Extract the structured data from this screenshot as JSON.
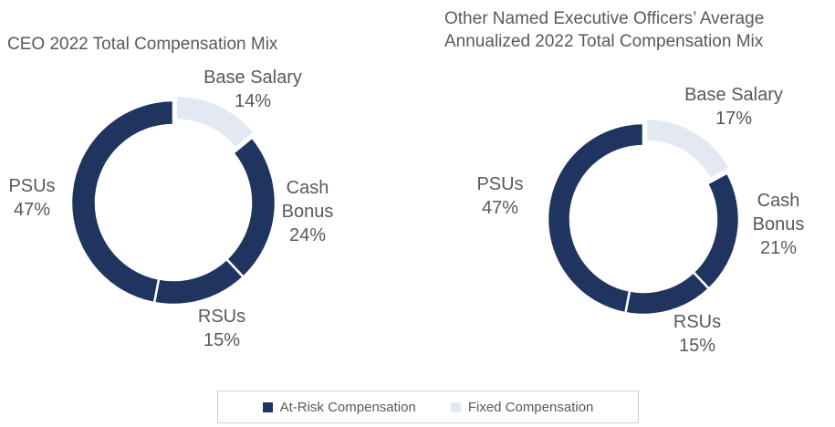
{
  "chart_data": [
    {
      "type": "pie",
      "title": "CEO 2022 Total Compensation Mix",
      "categories": [
        "Base Salary",
        "Cash Bonus",
        "RSUs",
        "PSUs"
      ],
      "values": [
        14,
        24,
        15,
        47
      ],
      "value_labels": [
        "14%",
        "24%",
        "15%",
        "47%"
      ],
      "colors": [
        "#e3e9f3",
        "#1f3560",
        "#1f3560",
        "#1f3560"
      ]
    },
    {
      "type": "pie",
      "title": "Other Named Executive Officers’ Average Annualized 2022 Total Compensation Mix",
      "categories": [
        "Base Salary",
        "Cash Bonus",
        "RSUs",
        "PSUs"
      ],
      "values": [
        17,
        21,
        15,
        47
      ],
      "value_labels": [
        "17%",
        "21%",
        "15%",
        "47%"
      ],
      "colors": [
        "#e3e9f3",
        "#1f3560",
        "#1f3560",
        "#1f3560"
      ]
    }
  ],
  "legend": [
    {
      "name": "At-Risk Compensation",
      "color": "#1f3560"
    },
    {
      "name": "Fixed Compensation",
      "color": "#e3e9f3"
    }
  ]
}
